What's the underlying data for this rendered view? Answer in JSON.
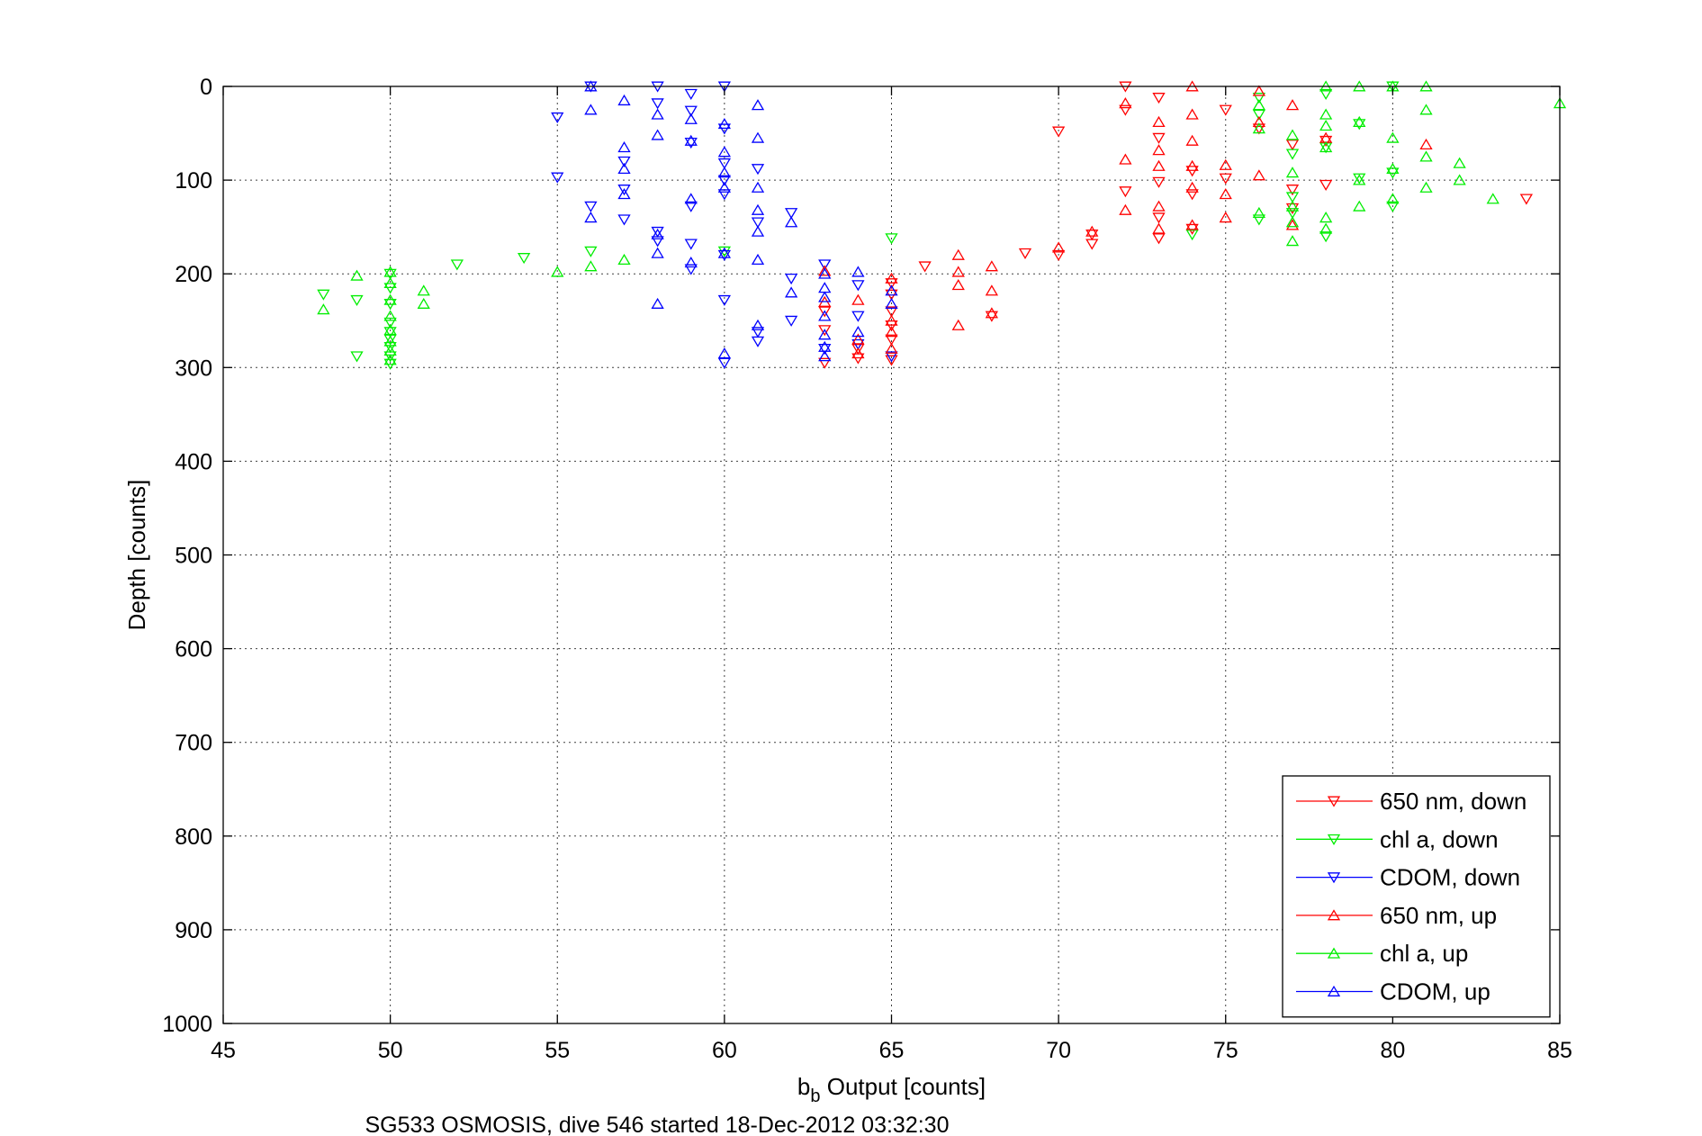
{
  "chart_data": {
    "type": "scatter",
    "xlabel_base": "b",
    "xlabel_sub": "b",
    "xlabel_rest": " Output [counts]",
    "ylabel": "Depth [counts]",
    "caption": "SG533 OSMOSIS, dive 546 started 18-Dec-2012 03:32:30",
    "xlim": [
      45,
      85
    ],
    "ylim": [
      0,
      1000
    ],
    "y_reversed": true,
    "grid": true,
    "legend_position": "bottom-right",
    "xticks": [
      45,
      50,
      55,
      60,
      65,
      70,
      75,
      80,
      85
    ],
    "yticks": [
      0,
      100,
      200,
      300,
      400,
      500,
      600,
      700,
      800,
      900,
      1000
    ],
    "series": [
      {
        "name": "650 nm, down",
        "color": "#ff0000",
        "marker": "triangle-down",
        "points": [
          [
            63,
            295
          ],
          [
            64,
            290
          ],
          [
            64,
            280
          ],
          [
            65,
            292
          ],
          [
            65,
            270
          ],
          [
            65,
            255
          ],
          [
            65,
            240
          ],
          [
            65,
            222
          ],
          [
            65,
            210
          ],
          [
            63,
            260
          ],
          [
            63,
            240
          ],
          [
            66,
            192
          ],
          [
            68,
            245
          ],
          [
            69,
            178
          ],
          [
            70,
            48
          ],
          [
            70,
            180
          ],
          [
            71,
            158
          ],
          [
            71,
            168
          ],
          [
            72,
            0
          ],
          [
            72,
            25
          ],
          [
            72,
            112
          ],
          [
            73,
            12
          ],
          [
            73,
            55
          ],
          [
            73,
            102
          ],
          [
            73,
            140
          ],
          [
            73,
            162
          ],
          [
            74,
            90
          ],
          [
            74,
            115
          ],
          [
            74,
            152
          ],
          [
            75,
            25
          ],
          [
            75,
            98
          ],
          [
            76,
            45
          ],
          [
            77,
            62
          ],
          [
            77,
            110
          ],
          [
            77,
            130
          ],
          [
            78,
            105
          ],
          [
            78,
            58
          ],
          [
            84,
            120
          ]
        ]
      },
      {
        "name": "chl a, down",
        "color": "#00ee00",
        "marker": "triangle-down",
        "points": [
          [
            48,
            222
          ],
          [
            49,
            228
          ],
          [
            49,
            288
          ],
          [
            50,
            200
          ],
          [
            50,
            215
          ],
          [
            50,
            232
          ],
          [
            50,
            252
          ],
          [
            50,
            262
          ],
          [
            50,
            270
          ],
          [
            50,
            278
          ],
          [
            50,
            288
          ],
          [
            50,
            296
          ],
          [
            52,
            190
          ],
          [
            54,
            183
          ],
          [
            56,
            176
          ],
          [
            60,
            176
          ],
          [
            65,
            162
          ],
          [
            74,
            158
          ],
          [
            76,
            12
          ],
          [
            76,
            30
          ],
          [
            76,
            142
          ],
          [
            77,
            72
          ],
          [
            77,
            118
          ],
          [
            77,
            135
          ],
          [
            78,
            8
          ],
          [
            78,
            65
          ],
          [
            78,
            160
          ],
          [
            79,
            40
          ],
          [
            79,
            98
          ],
          [
            80,
            0
          ],
          [
            80,
            92
          ],
          [
            80,
            128
          ]
        ]
      },
      {
        "name": "CDOM, down",
        "color": "#0000ff",
        "marker": "triangle-down",
        "points": [
          [
            55,
            33
          ],
          [
            55,
            97
          ],
          [
            56,
            0
          ],
          [
            56,
            128
          ],
          [
            57,
            80
          ],
          [
            57,
            110
          ],
          [
            57,
            142
          ],
          [
            58,
            0
          ],
          [
            58,
            18
          ],
          [
            58,
            155
          ],
          [
            58,
            165
          ],
          [
            59,
            8
          ],
          [
            59,
            26
          ],
          [
            59,
            60
          ],
          [
            59,
            128
          ],
          [
            59,
            168
          ],
          [
            59,
            195
          ],
          [
            60,
            0
          ],
          [
            60,
            45
          ],
          [
            60,
            82
          ],
          [
            60,
            100
          ],
          [
            60,
            115
          ],
          [
            60,
            180
          ],
          [
            60,
            228
          ],
          [
            60,
            295
          ],
          [
            61,
            88
          ],
          [
            61,
            145
          ],
          [
            61,
            262
          ],
          [
            61,
            272
          ],
          [
            62,
            135
          ],
          [
            62,
            205
          ],
          [
            62,
            250
          ],
          [
            63,
            190
          ],
          [
            63,
            280
          ],
          [
            64,
            212
          ],
          [
            64,
            245
          ],
          [
            64,
            275
          ],
          [
            65,
            288
          ]
        ]
      },
      {
        "name": "650 nm, up",
        "color": "#ff0000",
        "marker": "triangle-up",
        "points": [
          [
            63,
            197
          ],
          [
            63,
            230
          ],
          [
            64,
            228
          ],
          [
            64,
            270
          ],
          [
            64,
            285
          ],
          [
            65,
            205
          ],
          [
            65,
            250
          ],
          [
            65,
            262
          ],
          [
            65,
            280
          ],
          [
            67,
            180
          ],
          [
            67,
            198
          ],
          [
            67,
            212
          ],
          [
            67,
            255
          ],
          [
            68,
            192
          ],
          [
            68,
            218
          ],
          [
            68,
            242
          ],
          [
            70,
            172
          ],
          [
            71,
            155
          ],
          [
            72,
            18
          ],
          [
            72,
            78
          ],
          [
            72,
            132
          ],
          [
            73,
            38
          ],
          [
            73,
            68
          ],
          [
            73,
            85
          ],
          [
            73,
            128
          ],
          [
            73,
            152
          ],
          [
            74,
            0
          ],
          [
            74,
            30
          ],
          [
            74,
            58
          ],
          [
            74,
            85
          ],
          [
            74,
            108
          ],
          [
            74,
            148
          ],
          [
            75,
            84
          ],
          [
            75,
            115
          ],
          [
            75,
            140
          ],
          [
            76,
            5
          ],
          [
            76,
            38
          ],
          [
            76,
            95
          ],
          [
            77,
            20
          ],
          [
            77,
            148
          ],
          [
            78,
            55
          ],
          [
            81,
            62
          ]
        ]
      },
      {
        "name": "chl a, up",
        "color": "#00ee00",
        "marker": "triangle-up",
        "points": [
          [
            48,
            238
          ],
          [
            49,
            202
          ],
          [
            50,
            198
          ],
          [
            50,
            210
          ],
          [
            50,
            228
          ],
          [
            50,
            245
          ],
          [
            50,
            260
          ],
          [
            50,
            272
          ],
          [
            50,
            282
          ],
          [
            50,
            292
          ],
          [
            51,
            218
          ],
          [
            51,
            232
          ],
          [
            55,
            198
          ],
          [
            56,
            192
          ],
          [
            57,
            185
          ],
          [
            76,
            20
          ],
          [
            76,
            45
          ],
          [
            76,
            135
          ],
          [
            77,
            52
          ],
          [
            77,
            92
          ],
          [
            77,
            128
          ],
          [
            77,
            145
          ],
          [
            77,
            165
          ],
          [
            78,
            0
          ],
          [
            78,
            30
          ],
          [
            78,
            42
          ],
          [
            78,
            65
          ],
          [
            78,
            140
          ],
          [
            78,
            152
          ],
          [
            79,
            0
          ],
          [
            79,
            38
          ],
          [
            79,
            100
          ],
          [
            79,
            128
          ],
          [
            80,
            0
          ],
          [
            80,
            55
          ],
          [
            80,
            88
          ],
          [
            80,
            120
          ],
          [
            81,
            0
          ],
          [
            81,
            25
          ],
          [
            81,
            75
          ],
          [
            81,
            108
          ],
          [
            82,
            82
          ],
          [
            82,
            100
          ],
          [
            83,
            120
          ],
          [
            85,
            18
          ]
        ]
      },
      {
        "name": "CDOM, up",
        "color": "#0000ff",
        "marker": "triangle-up",
        "points": [
          [
            56,
            0
          ],
          [
            56,
            25
          ],
          [
            56,
            140
          ],
          [
            57,
            15
          ],
          [
            57,
            65
          ],
          [
            57,
            88
          ],
          [
            57,
            115
          ],
          [
            58,
            30
          ],
          [
            58,
            52
          ],
          [
            58,
            158
          ],
          [
            58,
            178
          ],
          [
            58,
            232
          ],
          [
            59,
            35
          ],
          [
            59,
            58
          ],
          [
            59,
            120
          ],
          [
            59,
            188
          ],
          [
            60,
            40
          ],
          [
            60,
            70
          ],
          [
            60,
            92
          ],
          [
            60,
            108
          ],
          [
            60,
            178
          ],
          [
            60,
            285
          ],
          [
            61,
            20
          ],
          [
            61,
            55
          ],
          [
            61,
            108
          ],
          [
            61,
            132
          ],
          [
            61,
            155
          ],
          [
            61,
            185
          ],
          [
            61,
            255
          ],
          [
            62,
            220
          ],
          [
            62,
            145
          ],
          [
            63,
            200
          ],
          [
            63,
            215
          ],
          [
            63,
            225
          ],
          [
            63,
            245
          ],
          [
            63,
            265
          ],
          [
            63,
            278
          ],
          [
            63,
            288
          ],
          [
            64,
            198
          ],
          [
            64,
            262
          ],
          [
            65,
            218
          ],
          [
            65,
            232
          ]
        ]
      }
    ]
  }
}
